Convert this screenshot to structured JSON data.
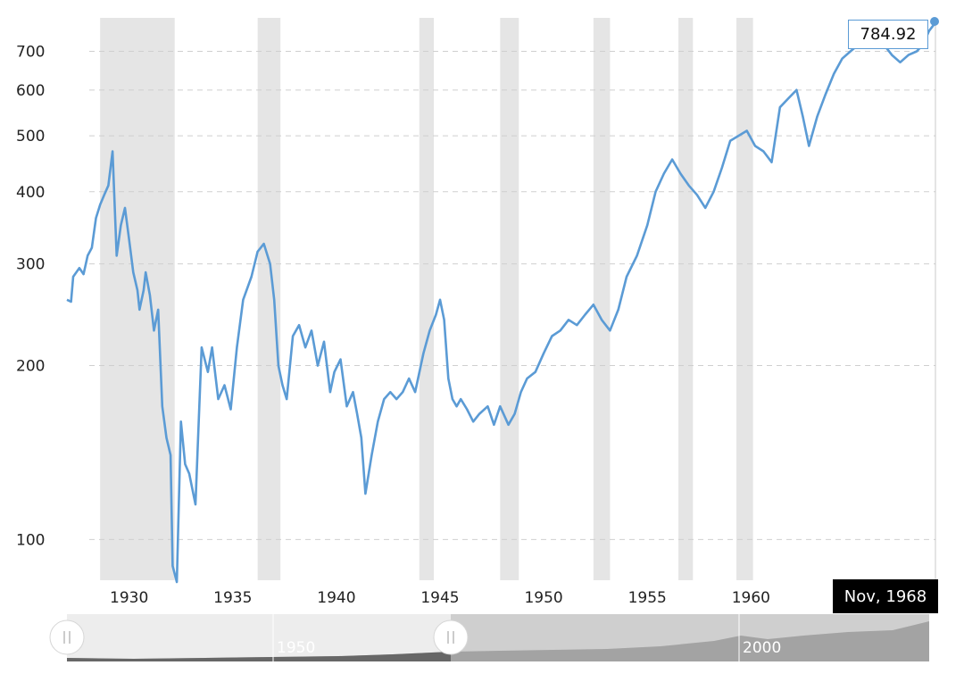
{
  "chart_data": {
    "type": "line",
    "title": "",
    "xlabel": "",
    "ylabel": "",
    "y_scale": "log",
    "ylim": [
      85,
      800
    ],
    "xlim": [
      1927.0,
      1968.9
    ],
    "grid": true,
    "y_ticks": [
      100,
      200,
      300,
      400,
      500,
      600,
      700
    ],
    "x_ticks": [
      1930,
      1935,
      1940,
      1945,
      1950,
      1955,
      1960
    ],
    "recession_shading": [
      [
        1928.6,
        1932.2
      ],
      [
        1936.2,
        1937.3
      ],
      [
        1944.0,
        1944.7
      ],
      [
        1947.9,
        1948.8
      ],
      [
        1952.4,
        1953.2
      ],
      [
        1956.5,
        1957.2
      ],
      [
        1959.3,
        1960.1
      ]
    ],
    "series": [
      {
        "color": "#5b9bd5",
        "x": [
          1927.0,
          1927.2,
          1927.3,
          1927.6,
          1927.8,
          1928.0,
          1928.2,
          1928.4,
          1928.6,
          1928.8,
          1929.0,
          1929.2,
          1929.4,
          1929.6,
          1929.8,
          1930.0,
          1930.2,
          1930.4,
          1930.5,
          1930.7,
          1930.8,
          1931.0,
          1931.2,
          1931.4,
          1931.6,
          1931.8,
          1932.0,
          1932.1,
          1932.3,
          1932.5,
          1932.7,
          1932.9,
          1933.2,
          1933.5,
          1933.8,
          1934.0,
          1934.3,
          1934.6,
          1934.9,
          1935.2,
          1935.5,
          1935.9,
          1936.2,
          1936.5,
          1936.8,
          1937.0,
          1937.2,
          1937.4,
          1937.6,
          1937.9,
          1938.2,
          1938.5,
          1938.8,
          1939.1,
          1939.4,
          1939.7,
          1939.9,
          1940.2,
          1940.5,
          1940.8,
          1941.0,
          1941.2,
          1941.4,
          1941.7,
          1942.0,
          1942.3,
          1942.6,
          1942.9,
          1943.2,
          1943.5,
          1943.8,
          1944.2,
          1944.5,
          1944.8,
          1945.0,
          1945.2,
          1945.4,
          1945.6,
          1945.8,
          1946.0,
          1946.3,
          1946.6,
          1946.9,
          1947.3,
          1947.6,
          1947.9,
          1948.3,
          1948.6,
          1948.9,
          1949.2,
          1949.6,
          1950.0,
          1950.4,
          1950.8,
          1951.2,
          1951.6,
          1952.0,
          1952.4,
          1952.8,
          1953.2,
          1953.6,
          1954.0,
          1954.5,
          1955.0,
          1955.4,
          1955.8,
          1956.2,
          1956.6,
          1957.0,
          1957.4,
          1957.8,
          1958.2,
          1958.6,
          1959.0,
          1959.4,
          1959.8,
          1960.2,
          1960.6,
          1961.0,
          1961.4,
          1961.8,
          1962.2,
          1962.5,
          1962.8,
          1963.2,
          1963.6,
          1964.0,
          1964.4,
          1964.8,
          1965.2,
          1965.6,
          1966.0,
          1966.4,
          1966.8,
          1967.2,
          1967.6,
          1968.0,
          1968.3,
          1968.6,
          1968.9
        ],
        "y": [
          260,
          258,
          285,
          295,
          288,
          310,
          320,
          360,
          380,
          395,
          410,
          470,
          310,
          350,
          375,
          330,
          290,
          270,
          250,
          270,
          290,
          265,
          230,
          250,
          170,
          150,
          140,
          90,
          75,
          160,
          135,
          130,
          115,
          215,
          195,
          215,
          175,
          185,
          168,
          215,
          260,
          285,
          315,
          325,
          300,
          260,
          200,
          185,
          175,
          225,
          235,
          215,
          230,
          200,
          220,
          180,
          195,
          205,
          170,
          180,
          165,
          150,
          120,
          140,
          160,
          175,
          180,
          175,
          180,
          190,
          180,
          210,
          230,
          245,
          260,
          240,
          190,
          175,
          170,
          175,
          168,
          160,
          165,
          170,
          158,
          170,
          158,
          165,
          180,
          190,
          195,
          210,
          225,
          230,
          240,
          235,
          245,
          255,
          240,
          230,
          250,
          285,
          310,
          350,
          400,
          430,
          455,
          430,
          410,
          395,
          375,
          400,
          440,
          490,
          500,
          510,
          480,
          470,
          450,
          560,
          580,
          600,
          540,
          480,
          540,
          590,
          640,
          680,
          700,
          720,
          740,
          760,
          720,
          690,
          670,
          690,
          700,
          720,
          760,
          784.92
        ]
      }
    ]
  },
  "tooltip": {
    "value": "784.92"
  },
  "crosshair_date": "Nov, 1968",
  "navigator": {
    "labels": [
      "1950",
      "2000"
    ]
  }
}
